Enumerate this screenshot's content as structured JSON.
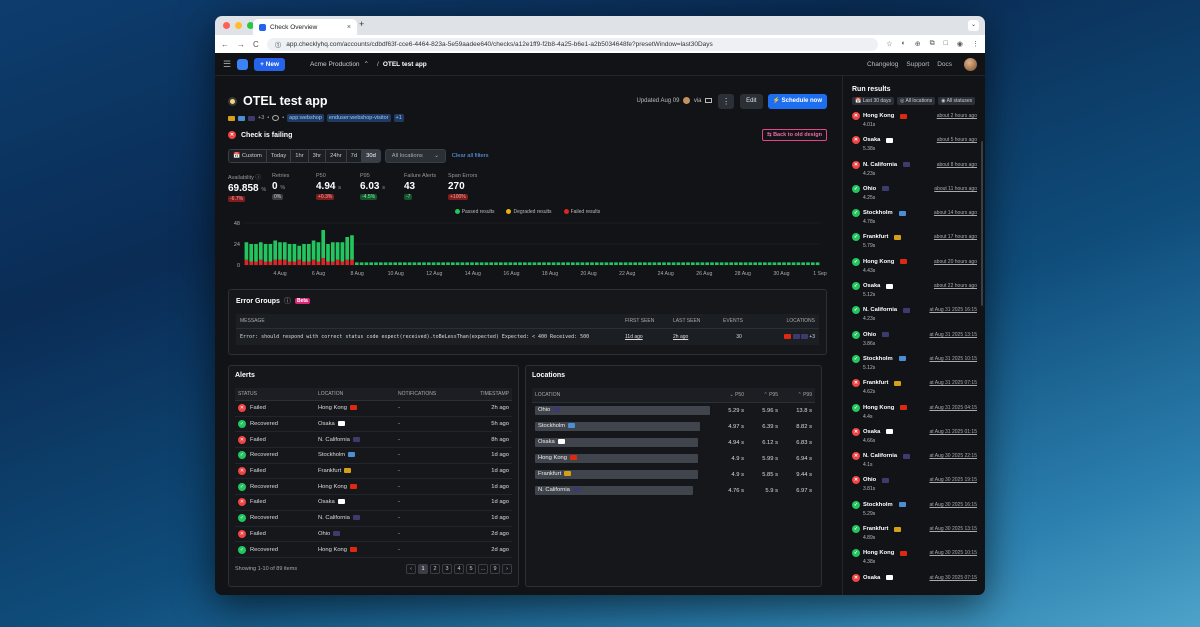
{
  "browser": {
    "tab_title": "Check Overview",
    "tab_close": "×",
    "new_tab": "+",
    "url": "app.checklyhq.com/accounts/cdbdf63f-cce6-4464-823a-5e59aadee640/checks/a12e1ff9-f2b8-4a25-b6e1-a2b5034648fe?presetWindow=last30Days",
    "nav": [
      "←",
      "→",
      "C",
      "⓵"
    ],
    "url_icons": [
      "☆",
      "◐",
      "⊕",
      "⧉",
      "□",
      "◉",
      "⋮"
    ],
    "chevron": "⌄"
  },
  "header": {
    "menu_glyph": "☰",
    "new_label": "+ New",
    "account": "Acme Production",
    "account_arrow": "⌃",
    "sep": "/",
    "check": "OTEL test app",
    "links": [
      "Changelog",
      "Support",
      "Docs"
    ]
  },
  "check": {
    "title": "OTEL test app",
    "updated": "Updated Aug 09",
    "via": "via",
    "kebab": "⋮",
    "edit": "Edit",
    "schedule": "⚡ Schedule now",
    "status": "Check is failing",
    "fail_glyph": "✕",
    "ok_glyph": "✓",
    "back_old": "⇆ Back to old design",
    "tags": {
      "more_flags": "+3",
      "bullet": "•",
      "t1": "app:webshop",
      "t2": "enduser:webshop-visitor",
      "more": "+1"
    }
  },
  "filters": {
    "ranges": [
      "📅 Custom",
      "Today",
      "1hr",
      "3hr",
      "24hr",
      "7d",
      "30d"
    ],
    "locations": "All locations",
    "locations_arrow": "⌄",
    "clear": "Clear all filters"
  },
  "metrics": [
    {
      "label": "Availability ⓘ",
      "value": "69.858",
      "unit": "%",
      "delta": "-6.7%",
      "tone": "red"
    },
    {
      "label": "Retries",
      "value": "0",
      "unit": "%",
      "delta": "0%",
      "tone": "gray"
    },
    {
      "label": "P50",
      "value": "4.94",
      "unit": "s",
      "delta": "+0.3%",
      "tone": "red"
    },
    {
      "label": "P95",
      "value": "6.03",
      "unit": "s",
      "delta": "-4.5%",
      "tone": "green"
    },
    {
      "label": "Failure Alerts",
      "value": "43",
      "unit": "",
      "delta": "-7",
      "tone": "green"
    },
    {
      "label": "Span Errors",
      "value": "270",
      "unit": "",
      "delta": "+100%",
      "tone": "red"
    }
  ],
  "legend": [
    "Passed results",
    "Degraded results",
    "Failed results"
  ],
  "colors": {
    "passed": "#22c55e",
    "degraded": "#eab308",
    "failed": "#dc2626"
  },
  "chart_data": {
    "type": "bar",
    "stacked": true,
    "y_ticks": [
      "48",
      "24",
      "0"
    ],
    "ylim": [
      0,
      48
    ],
    "x_ticks": [
      "4 Aug",
      "6 Aug",
      "8 Aug",
      "10 Aug",
      "12 Aug",
      "14 Aug",
      "16 Aug",
      "18 Aug",
      "20 Aug",
      "22 Aug",
      "24 Aug",
      "26 Aug",
      "28 Aug",
      "30 Aug",
      "1 Sep"
    ],
    "series": [
      {
        "name": "Passed results",
        "values": [
          20,
          20,
          20,
          20,
          20,
          20,
          22,
          20,
          20,
          20,
          20,
          16,
          20,
          20,
          22,
          22,
          32,
          20,
          22,
          20,
          22,
          26,
          28,
          3,
          3,
          3,
          3,
          3,
          3,
          3,
          3,
          3,
          3,
          3,
          3,
          3,
          3,
          3,
          3,
          3,
          3,
          3,
          3,
          3,
          3,
          3,
          3,
          3,
          3,
          3,
          3,
          3,
          3,
          3,
          3,
          3,
          3,
          3,
          3,
          3,
          3,
          3,
          3,
          3,
          3,
          3,
          3,
          3,
          3,
          3,
          3,
          3,
          3,
          3,
          3,
          3,
          3,
          3,
          3,
          3,
          3,
          3,
          3,
          3,
          3,
          3,
          3,
          3,
          3,
          3,
          3,
          3,
          3,
          3,
          3,
          3,
          3,
          3,
          3,
          3,
          3,
          3,
          3,
          3,
          3,
          3,
          3,
          3,
          3,
          3,
          3,
          3,
          3,
          3,
          3,
          3,
          3,
          3,
          3,
          3
        ]
      },
      {
        "name": "Failed results",
        "values": [
          6,
          4,
          4,
          6,
          4,
          4,
          6,
          6,
          6,
          4,
          4,
          6,
          4,
          4,
          6,
          4,
          8,
          4,
          4,
          6,
          4,
          6,
          6,
          0,
          0,
          0,
          0,
          0,
          0,
          0,
          0,
          0,
          0,
          0,
          0,
          0,
          0,
          0,
          0,
          0,
          0,
          0,
          0,
          0,
          0,
          0,
          0,
          0,
          0,
          0,
          0,
          0,
          0,
          0,
          0,
          0,
          0,
          0,
          0,
          0,
          0,
          0,
          0,
          0,
          0,
          0,
          0,
          0,
          0,
          0,
          0,
          0,
          0,
          0,
          0,
          0,
          0,
          0,
          0,
          0,
          0,
          0,
          0,
          0,
          0,
          0,
          0,
          0,
          0,
          0,
          0,
          0,
          0,
          0,
          0,
          0,
          0,
          0,
          0,
          0,
          0,
          0,
          0,
          0,
          0,
          0,
          0,
          0,
          0,
          0,
          0,
          0,
          0,
          0,
          0,
          0,
          0,
          0,
          0,
          0
        ]
      }
    ]
  },
  "error_groups": {
    "title": "Error Groups",
    "info": "ⓘ",
    "beta": "Beta",
    "cols": [
      "MESSAGE",
      "FIRST SEEN",
      "LAST SEEN",
      "EVENTS",
      "LOCATIONS"
    ],
    "row": {
      "message": "Error: should respond with correct status code expect(received).toBeLessThan(expected) Expected: < 400 Received: 500",
      "first": "11d ago",
      "last": "2h ago",
      "events": "30",
      "more": "+3"
    }
  },
  "alerts": {
    "title": "Alerts",
    "cols": [
      "STATUS",
      "LOCATION",
      "NOTIFICATIONS",
      "TIMESTAMP"
    ],
    "rows": [
      {
        "status": "Failed",
        "loc": "Hong Kong",
        "notif": "-",
        "ts": "2h ago",
        "ok": false
      },
      {
        "status": "Recovered",
        "loc": "Osaka",
        "notif": "-",
        "ts": "5h ago",
        "ok": true
      },
      {
        "status": "Failed",
        "loc": "N. California",
        "notif": "-",
        "ts": "8h ago",
        "ok": false
      },
      {
        "status": "Recovered",
        "loc": "Stockholm",
        "notif": "-",
        "ts": "1d ago",
        "ok": true
      },
      {
        "status": "Failed",
        "loc": "Frankfurt",
        "notif": "-",
        "ts": "1d ago",
        "ok": false
      },
      {
        "status": "Recovered",
        "loc": "Hong Kong",
        "notif": "-",
        "ts": "1d ago",
        "ok": true
      },
      {
        "status": "Failed",
        "loc": "Osaka",
        "notif": "-",
        "ts": "1d ago",
        "ok": false
      },
      {
        "status": "Recovered",
        "loc": "N. California",
        "notif": "-",
        "ts": "1d ago",
        "ok": true
      },
      {
        "status": "Failed",
        "loc": "Ohio",
        "notif": "-",
        "ts": "2d ago",
        "ok": false
      },
      {
        "status": "Recovered",
        "loc": "Hong Kong",
        "notif": "-",
        "ts": "2d ago",
        "ok": true
      }
    ],
    "showing": "Showing 1-10 of 89 items",
    "pages": [
      "‹",
      "1",
      "2",
      "3",
      "4",
      "5",
      "...",
      "9",
      "›"
    ]
  },
  "locations": {
    "title": "Locations",
    "cols": [
      "LOCATION",
      "⌄ P50",
      "⌃ P95",
      "⌃ P99"
    ],
    "rows": [
      {
        "name": "Ohio",
        "p50": "5.29 s",
        "p95": "5.96 s",
        "p99": "13.8 s",
        "w": 1.0
      },
      {
        "name": "Stockholm",
        "p50": "4.97 s",
        "p95": "6.39 s",
        "p99": "8.82 s",
        "w": 0.94
      },
      {
        "name": "Osaka",
        "p50": "4.94 s",
        "p95": "6.12 s",
        "p99": "6.83 s",
        "w": 0.93
      },
      {
        "name": "Hong Kong",
        "p50": "4.9 s",
        "p95": "5.99 s",
        "p99": "6.94 s",
        "w": 0.93
      },
      {
        "name": "Frankfurt",
        "p50": "4.9 s",
        "p95": "5.85 s",
        "p99": "9.44 s",
        "w": 0.93
      },
      {
        "name": "N. California",
        "p50": "4.76 s",
        "p95": "5.9 s",
        "p99": "6.97 s",
        "w": 0.9
      }
    ]
  },
  "run_results": {
    "title": "Run results",
    "filters": [
      "📅 Last 30 days",
      "◎ All locations",
      "◉ All statuses"
    ],
    "runs": [
      {
        "loc": "Hong Kong",
        "ok": false,
        "time": "about 2 hours ago",
        "dur": "4.01s"
      },
      {
        "loc": "Osaka",
        "ok": false,
        "time": "about 5 hours ago",
        "dur": "5.38s"
      },
      {
        "loc": "N. California",
        "ok": false,
        "time": "about 8 hours ago",
        "dur": "4.23s"
      },
      {
        "loc": "Ohio",
        "ok": true,
        "time": "about 11 hours ago",
        "dur": "4.25s"
      },
      {
        "loc": "Stockholm",
        "ok": true,
        "time": "about 14 hours ago",
        "dur": "4.78s"
      },
      {
        "loc": "Frankfurt",
        "ok": true,
        "time": "about 17 hours ago",
        "dur": "5.79s"
      },
      {
        "loc": "Hong Kong",
        "ok": true,
        "time": "about 20 hours ago",
        "dur": "4.43s"
      },
      {
        "loc": "Osaka",
        "ok": true,
        "time": "about 22 hours ago",
        "dur": "5.12s"
      },
      {
        "loc": "N. California",
        "ok": true,
        "time": "at Aug 31 2025 16:15",
        "dur": "4.23s"
      },
      {
        "loc": "Ohio",
        "ok": true,
        "time": "at Aug 31 2025 13:15",
        "dur": "3.86s"
      },
      {
        "loc": "Stockholm",
        "ok": true,
        "time": "at Aug 31 2025 10:15",
        "dur": "5.12s"
      },
      {
        "loc": "Frankfurt",
        "ok": false,
        "time": "at Aug 31 2025 07:15",
        "dur": "4.62s"
      },
      {
        "loc": "Hong Kong",
        "ok": true,
        "time": "at Aug 31 2025 04:15",
        "dur": "4.4s"
      },
      {
        "loc": "Osaka",
        "ok": false,
        "time": "at Aug 31 2025 01:15",
        "dur": "4.66s"
      },
      {
        "loc": "N. California",
        "ok": false,
        "time": "at Aug 30 2025 22:15",
        "dur": "4.1s"
      },
      {
        "loc": "Ohio",
        "ok": false,
        "time": "at Aug 30 2025 19:15",
        "dur": "3.81s"
      },
      {
        "loc": "Stockholm",
        "ok": true,
        "time": "at Aug 30 2025 16:15",
        "dur": "5.29s"
      },
      {
        "loc": "Frankfurt",
        "ok": true,
        "time": "at Aug 30 2025 13:15",
        "dur": "4.89s"
      },
      {
        "loc": "Hong Kong",
        "ok": true,
        "time": "at Aug 30 2025 10:15",
        "dur": "4.38s"
      },
      {
        "loc": "Osaka",
        "ok": false,
        "time": "at Aug 30 2025 07:15",
        "dur": ""
      }
    ]
  },
  "flags": {
    "Hong Kong": "#de2910",
    "Osaka": "#ffffff",
    "N. California": "#3c3b6e",
    "Ohio": "#3c3b6e",
    "Stockholm": "#4a8fd6",
    "Frankfurt": "#d4a017"
  }
}
